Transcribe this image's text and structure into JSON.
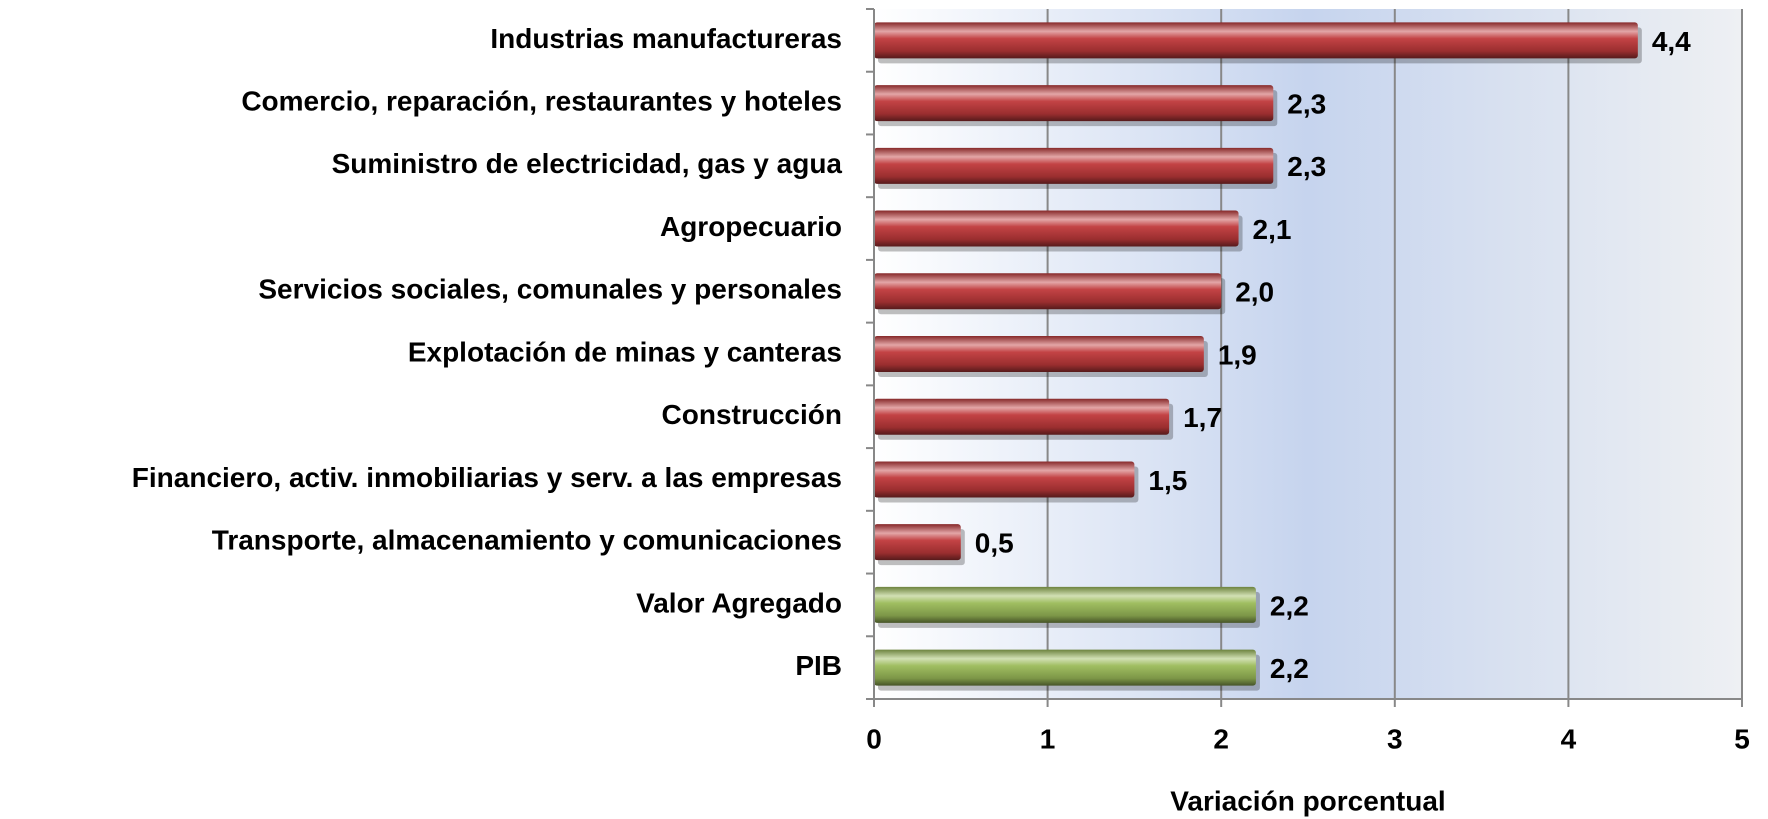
{
  "chart_data": {
    "type": "bar",
    "orientation": "horizontal",
    "categories": [
      "Industrias manufactureras",
      "Comercio, reparación, restaurantes  y hoteles",
      "Suministro de electricidad, gas y agua",
      "Agropecuario",
      "Servicios sociales, comunales y personales",
      "Explotación de minas y canteras",
      "Construcción",
      "Financiero, activ. inmobiliarias y serv. a las empresas",
      "Transporte, almacenamiento  y comunicaciones",
      "Valor Agregado",
      "PIB"
    ],
    "values": [
      4.4,
      2.3,
      2.3,
      2.1,
      2.0,
      1.9,
      1.7,
      1.5,
      0.5,
      2.2,
      2.2
    ],
    "value_labels": [
      "4,4",
      "2,3",
      "2,3",
      "2,1",
      "2,0",
      "1,9",
      "1,7",
      "1,5",
      "0,5",
      "2,2",
      "2,2"
    ],
    "colors": [
      "#c0393b",
      "#c0393b",
      "#c0393b",
      "#c0393b",
      "#c0393b",
      "#c0393b",
      "#c0393b",
      "#c0393b",
      "#c0393b",
      "#9bbb59",
      "#9bbb59"
    ],
    "x_label": "Variación porcentual",
    "xlim": [
      0,
      5
    ],
    "xticks": [
      0,
      1,
      2,
      3,
      4,
      5
    ],
    "grid": true
  }
}
